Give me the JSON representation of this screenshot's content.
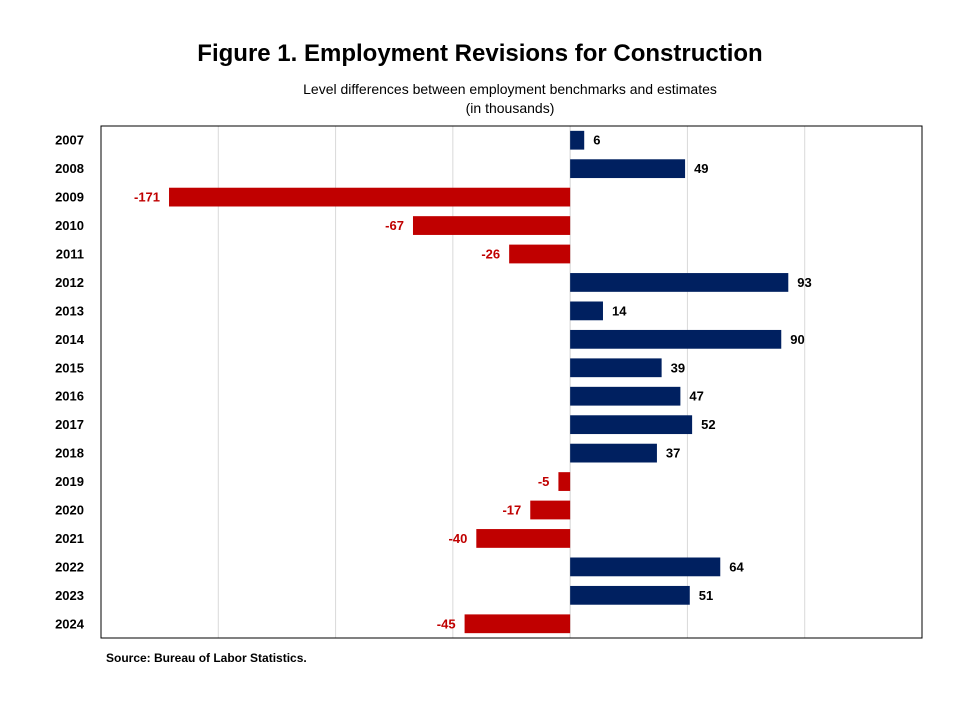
{
  "chart_data": {
    "type": "bar",
    "orientation": "horizontal",
    "title": "Figure 1. Employment Revisions for Construction",
    "subtitle": [
      "Level differences between  employment  benchmarks  and estimates",
      "(in thousands)"
    ],
    "categories": [
      "2007",
      "2008",
      "2009",
      "2010",
      "2011",
      "2012",
      "2013",
      "2014",
      "2015",
      "2016",
      "2017",
      "2018",
      "2019",
      "2020",
      "2021",
      "2022",
      "2023",
      "2024"
    ],
    "values": [
      6,
      49,
      -171,
      -67,
      -26,
      93,
      14,
      90,
      39,
      47,
      52,
      37,
      -5,
      -17,
      -40,
      64,
      51,
      -45
    ],
    "xlim": [
      -200,
      150
    ],
    "grid": true,
    "legend": "none",
    "source": "Source: Bureau of Labor Statistics."
  },
  "colors": {
    "positive": "#002060",
    "negative": "#C00000",
    "negative_label": "#C00000",
    "positive_label": "#000000",
    "gridline": "#d9d9d9",
    "frame": "#000000"
  }
}
